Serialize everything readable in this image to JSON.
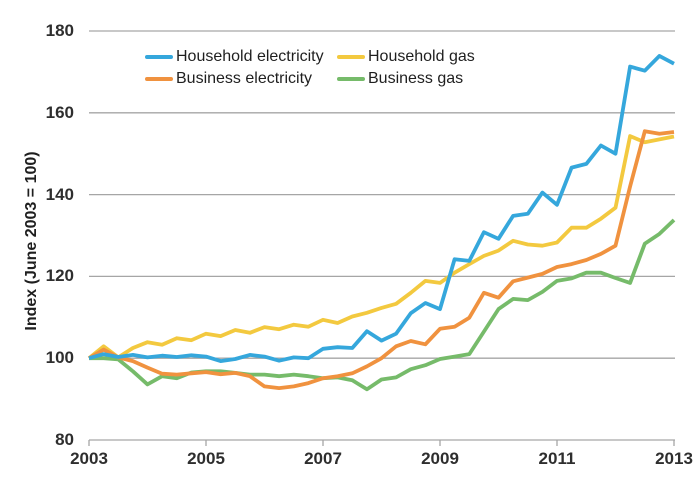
{
  "chart": {
    "y_axis_title": "Index (June 2003 = 100)",
    "y_tick_labels": [
      "180",
      "160",
      "140",
      "120",
      "100",
      "80"
    ],
    "x_tick_labels": [
      "2003",
      "2005",
      "2007",
      "2009",
      "2011",
      "2013"
    ],
    "gridline_color": "#a6a6a6",
    "axis_line_color": "#a6a6a6",
    "text_color": "#2e2e2e"
  },
  "chart_data": {
    "type": "line",
    "title": "",
    "xlabel": "",
    "ylabel": "Index (June 2003 = 100)",
    "ylim": [
      80,
      180
    ],
    "y_ticks": [
      180,
      160,
      140,
      120,
      100,
      80
    ],
    "x_ticks": [
      "2003",
      "2005",
      "2007",
      "2009",
      "2011",
      "2013"
    ],
    "x_note": "quarterly observations, 41 points from June 2003 to 2013, 8 points per labelled x tick",
    "grid": "horizontal gridlines on",
    "legend_position": "top inside plot, two columns",
    "series": [
      {
        "name": "Household electricity",
        "color": "#35a7dc",
        "values": [
          100,
          101,
          100.3,
          100.8,
          100.2,
          100.6,
          100.3,
          100.7,
          100.4,
          99.3,
          99.8,
          100.8,
          100.4,
          99.4,
          100.2,
          100,
          102.3,
          102.7,
          102.5,
          106.6,
          104.3,
          106,
          111,
          113.5,
          112,
          124.2,
          123.8,
          130.8,
          129.2,
          134.8,
          135.3,
          140.5,
          137.5,
          146.6,
          147.5,
          152,
          150,
          171.3,
          170.3,
          173.9,
          172
        ]
      },
      {
        "name": "Business electricity",
        "color": "#f0923f",
        "values": [
          100,
          102.1,
          100.2,
          99.3,
          97.7,
          96.2,
          96,
          96.3,
          96.6,
          96.1,
          96.4,
          95.6,
          93.1,
          92.7,
          93.1,
          93.9,
          95.1,
          95.6,
          96.3,
          98,
          100,
          102.9,
          104.2,
          103.4,
          107.2,
          107.7,
          109.9,
          116,
          114.8,
          118.8,
          119.7,
          120.6,
          122.3,
          123,
          124,
          125.5,
          127.5,
          142,
          155.5,
          154.9,
          155.3
        ]
      },
      {
        "name": "Household gas",
        "color": "#f3c93f",
        "values": [
          100,
          102.9,
          100.2,
          102.5,
          103.9,
          103.3,
          104.9,
          104.4,
          106,
          105.4,
          106.9,
          106.2,
          107.6,
          107.1,
          108.2,
          107.7,
          109.4,
          108.6,
          110.2,
          111.1,
          112.3,
          113.3,
          116,
          118.9,
          118.4,
          120.9,
          123,
          125,
          126.3,
          128.7,
          127.8,
          127.5,
          128.3,
          131.9,
          131.9,
          134.1,
          136.8,
          154.3,
          152.8,
          153.5,
          154.2
        ]
      },
      {
        "name": "Business gas",
        "color": "#76bb6a",
        "values": [
          100,
          100,
          99.7,
          96.8,
          93.6,
          95.6,
          95.1,
          96.5,
          96.8,
          96.8,
          96.4,
          96,
          96,
          95.6,
          96,
          95.6,
          95.1,
          95.3,
          94.6,
          92.4,
          94.8,
          95.3,
          97.3,
          98.3,
          99.8,
          100.4,
          101,
          106.5,
          112,
          114.5,
          114.2,
          116.2,
          118.9,
          119.5,
          120.9,
          120.9,
          119.6,
          118.4,
          128,
          130.4,
          133.8
        ]
      }
    ]
  }
}
